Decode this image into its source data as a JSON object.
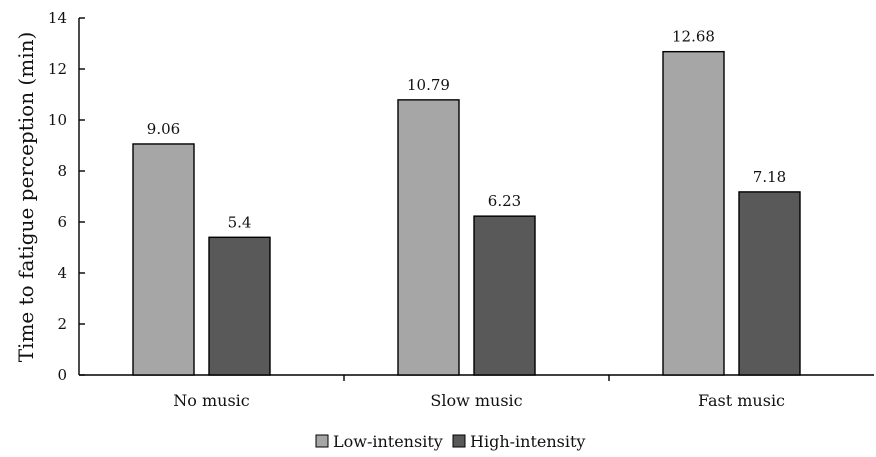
{
  "chart_data": {
    "type": "bar",
    "title": "",
    "xlabel": "",
    "ylabel": "Time to fatigue perception (min)",
    "ylim": [
      0,
      14
    ],
    "yticks": [
      0,
      2,
      4,
      6,
      8,
      10,
      12,
      14
    ],
    "categories": [
      "No music",
      "Slow music",
      "Fast music"
    ],
    "series": [
      {
        "name": "Low-intensity",
        "values": [
          9.06,
          10.79,
          12.68
        ],
        "value_labels": [
          "9.06",
          "10.79",
          "12.68"
        ],
        "color": "#a6a6a6"
      },
      {
        "name": "High-intensity",
        "values": [
          5.4,
          6.23,
          7.18
        ],
        "value_labels": [
          "5.4",
          "6.23",
          "7.18"
        ],
        "color": "#595959"
      }
    ],
    "grid": false,
    "legend_position": "bottom-center"
  }
}
